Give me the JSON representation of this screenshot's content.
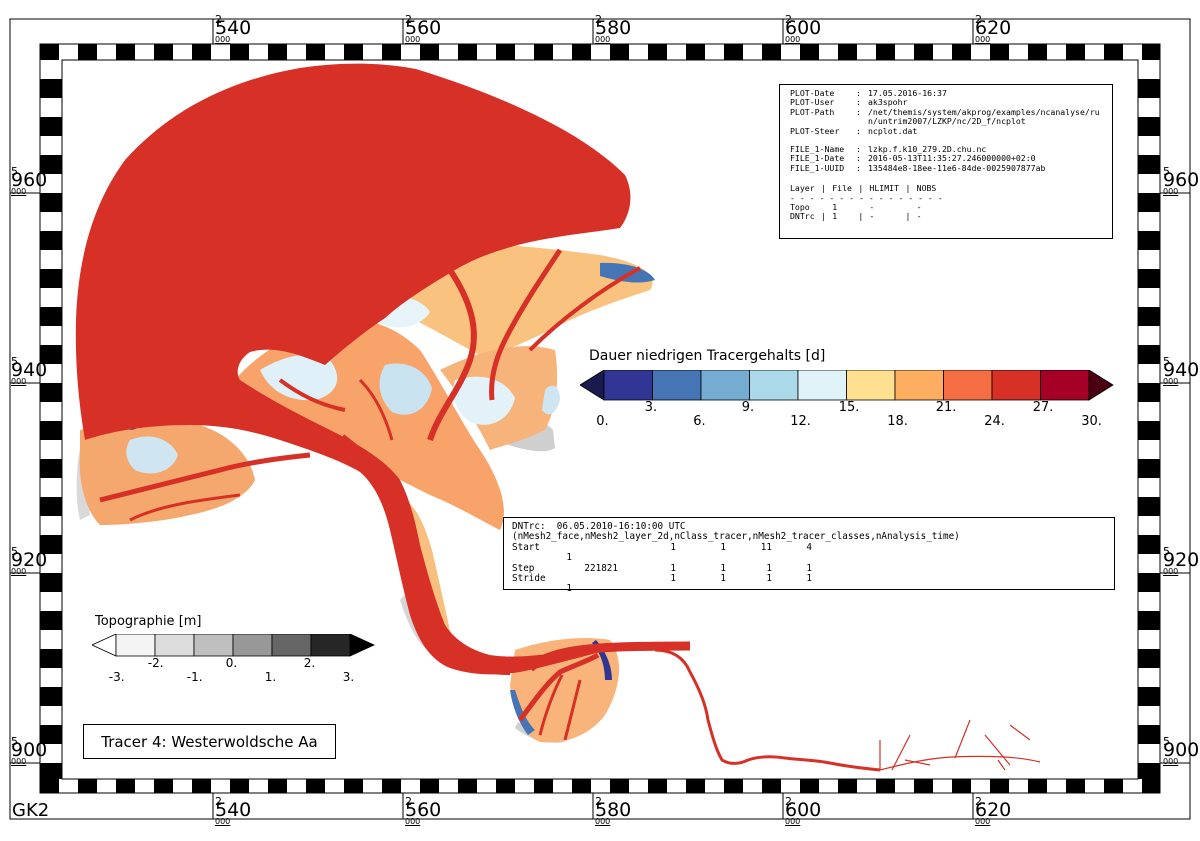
{
  "map": {
    "grid_label": "GK2",
    "x_ticks": [
      {
        "exp": "2",
        "main": "540",
        "sub": "000",
        "value": 540
      },
      {
        "exp": "2",
        "main": "560",
        "sub": "000",
        "value": 560
      },
      {
        "exp": "2",
        "main": "580",
        "sub": "000",
        "value": 580
      },
      {
        "exp": "2",
        "main": "600",
        "sub": "000",
        "value": 600
      },
      {
        "exp": "2",
        "main": "620",
        "sub": "000",
        "value": 620
      }
    ],
    "y_ticks": [
      {
        "exp": "5",
        "main": "960",
        "sub": "000",
        "value": 960
      },
      {
        "exp": "5",
        "main": "940",
        "sub": "000",
        "value": 940
      },
      {
        "exp": "5",
        "main": "920",
        "sub": "000",
        "value": 920
      },
      {
        "exp": "5",
        "main": "900",
        "sub": "000",
        "value": 900
      }
    ],
    "colors": {
      "tracer_high": "#d73027",
      "land_grey": "#d3d3d3",
      "river": "#d73027"
    }
  },
  "plot_info": {
    "rows": [
      {
        "key": "PLOT-Date",
        "value": "17.05.2016-16:37"
      },
      {
        "key": "PLOT-User",
        "value": "ak3spohr"
      },
      {
        "key": "PLOT-Path",
        "value": "/net/themis/system/akprog/examples/ncanalyse/run/untrim2007/LZKP/nc/2D_f/ncplot"
      },
      {
        "key": "PLOT-Steer",
        "value": "ncplot.dat"
      }
    ],
    "file_rows": [
      {
        "key": "FILE_1-Name",
        "value": "lzkp.f.k10_279.2D.chu.nc"
      },
      {
        "key": "FILE_1-Date",
        "value": "2016-05-13T11:35:27.246000000+02:0"
      },
      {
        "key": "FILE_1-UUID",
        "value": "135484e8-18ee-11e6-84de-0025907877ab"
      }
    ],
    "table_header": [
      "Layer",
      "|",
      "File",
      "|",
      "HLIMIT",
      "|",
      "NOBS"
    ],
    "table_rule": "- - - - - - - - - - - - - - - -",
    "table_rows": [
      [
        "Topo",
        "",
        "1",
        "",
        "-",
        "",
        "-"
      ],
      [
        "DNTrc",
        "|",
        "1",
        "|",
        "-",
        "|",
        "-"
      ]
    ]
  },
  "dnt_box": {
    "line1": "DNTrc:  06.05.2010-16:10:00 UTC",
    "line2": "(nMesh2_face,nMesh2_layer_2d,nClass_tracer,nMesh2_tracer_classes,nAnalysis_time)",
    "rows": [
      {
        "label": "Start",
        "v": [
          "",
          "1",
          "1",
          "11",
          "4",
          "1"
        ]
      },
      {
        "label": "Step",
        "v": [
          "221821",
          "1",
          "1",
          "1",
          "1",
          ""
        ]
      },
      {
        "label": "Stride",
        "v": [
          "",
          "1",
          "1",
          "1",
          "1",
          "1"
        ]
      }
    ]
  },
  "tracer_colorbar": {
    "title": "Dauer niedrigen Tracergehalts [d]",
    "colors": [
      "#313695",
      "#4575b4",
      "#74add1",
      "#abd9e9",
      "#e0f3f8",
      "#fee090",
      "#fdae61",
      "#f46d43",
      "#d73027",
      "#a50026"
    ],
    "under_color": "#1a1a4e",
    "over_color": "#4a0012",
    "upper_labels": [
      "3.",
      "9.",
      "15.",
      "21.",
      "27."
    ],
    "lower_labels": [
      "0.",
      "6.",
      "12.",
      "18.",
      "24.",
      "30."
    ]
  },
  "topo_colorbar": {
    "title": "Topographie [m]",
    "colors": [
      "#f4f4f4",
      "#dcdcdc",
      "#bfbfbf",
      "#989898",
      "#666666",
      "#262626"
    ],
    "under_color": "#ffffff",
    "over_color": "#000000",
    "upper_labels": [
      "-2.",
      "0.",
      "2."
    ],
    "lower_labels": [
      "-3.",
      "-1.",
      "1.",
      "3."
    ]
  },
  "tracer_label": "Tracer 4: Westerwoldsche Aa"
}
